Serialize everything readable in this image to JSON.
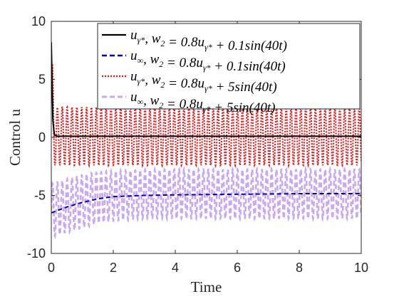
{
  "chart_data": {
    "type": "line",
    "title": "",
    "xlabel": "Time",
    "ylabel": "Control u",
    "xlim": [
      0,
      10
    ],
    "ylim": [
      -10,
      10
    ],
    "x_ticks": [
      "0",
      "2",
      "4",
      "6",
      "8",
      "10"
    ],
    "y_ticks": [
      "-10",
      "-5",
      "0",
      "5",
      "10"
    ],
    "grid": false,
    "legend_position": "top-right",
    "series": [
      {
        "name": "u_{γ*}, w_2 = 0.8u_{γ*} + 0.1sin(40t)",
        "color": "#000000",
        "style": "solid",
        "x": [
          0,
          0.05,
          0.1,
          0.2,
          0.5,
          1,
          2,
          4,
          6,
          8,
          10
        ],
        "y": [
          8.2,
          1.5,
          0.2,
          0.1,
          0.1,
          0.1,
          0.1,
          0.1,
          0.1,
          0.1,
          0.1
        ]
      },
      {
        "name": "u_∞, w_2 = 0.8u_{γ*} + 0.1sin(40t)",
        "color": "#0000cc",
        "style": "dashed",
        "x": [
          0,
          0.5,
          1,
          1.5,
          2,
          3,
          4,
          6,
          8,
          10
        ],
        "y": [
          -6.5,
          -6.0,
          -5.6,
          -5.3,
          -5.1,
          -5.0,
          -4.95,
          -4.9,
          -4.85,
          -4.85
        ]
      },
      {
        "name": "u_{γ*}, w_2 = 0.8u_{γ*} + 5sin(40t)",
        "color": "#e41a1c",
        "style": "dotted",
        "envelope_upper": [
          8.4,
          2.6,
          2.6,
          2.6
        ],
        "envelope_lower": [
          -2.4,
          -2.4,
          -2.4,
          -2.4
        ],
        "x_envelope": [
          0,
          0.1,
          5,
          10
        ]
      },
      {
        "name": "u_∞, w_2 = 0.8u_{γ*} + 5sin(40t)",
        "color": "#c9a8f0",
        "style": "dashed",
        "x_envelope": [
          0,
          0.5,
          1,
          1.5,
          2,
          3,
          4,
          6,
          8,
          10
        ],
        "envelope_upper": [
          -4.0,
          -3.6,
          -3.2,
          -3.0,
          -2.9,
          -2.8,
          -2.75,
          -2.75,
          -2.75,
          -2.75
        ],
        "envelope_lower": [
          -8.6,
          -8.2,
          -7.8,
          -7.4,
          -7.2,
          -7.0,
          -7.0,
          -7.0,
          -7.0,
          -7.0
        ]
      }
    ]
  },
  "legend": {
    "entries": [
      {
        "var": "u",
        "sub": "γ*",
        "eq_a": ", w",
        "eq_sub": "2",
        "eq_b": " = 0.8u",
        "eq_sub2": "γ*",
        "eq_c": " + 0.1sin(40t)"
      },
      {
        "var": "u",
        "sub": "∞",
        "eq_a": ", w",
        "eq_sub": "2",
        "eq_b": " = 0.8u",
        "eq_sub2": "γ*",
        "eq_c": " + 0.1sin(40t)"
      },
      {
        "var": "u",
        "sub": "γ*",
        "eq_a": ", w",
        "eq_sub": "2",
        "eq_b": " = 0.8u",
        "eq_sub2": "γ*",
        "eq_c": " + 5sin(40t)"
      },
      {
        "var": "u",
        "sub": "∞",
        "eq_a": ", w",
        "eq_sub": "2",
        "eq_b": " = 0.8u",
        "eq_sub2": "γ*",
        "eq_c": " + 5sin(40t)"
      }
    ]
  }
}
